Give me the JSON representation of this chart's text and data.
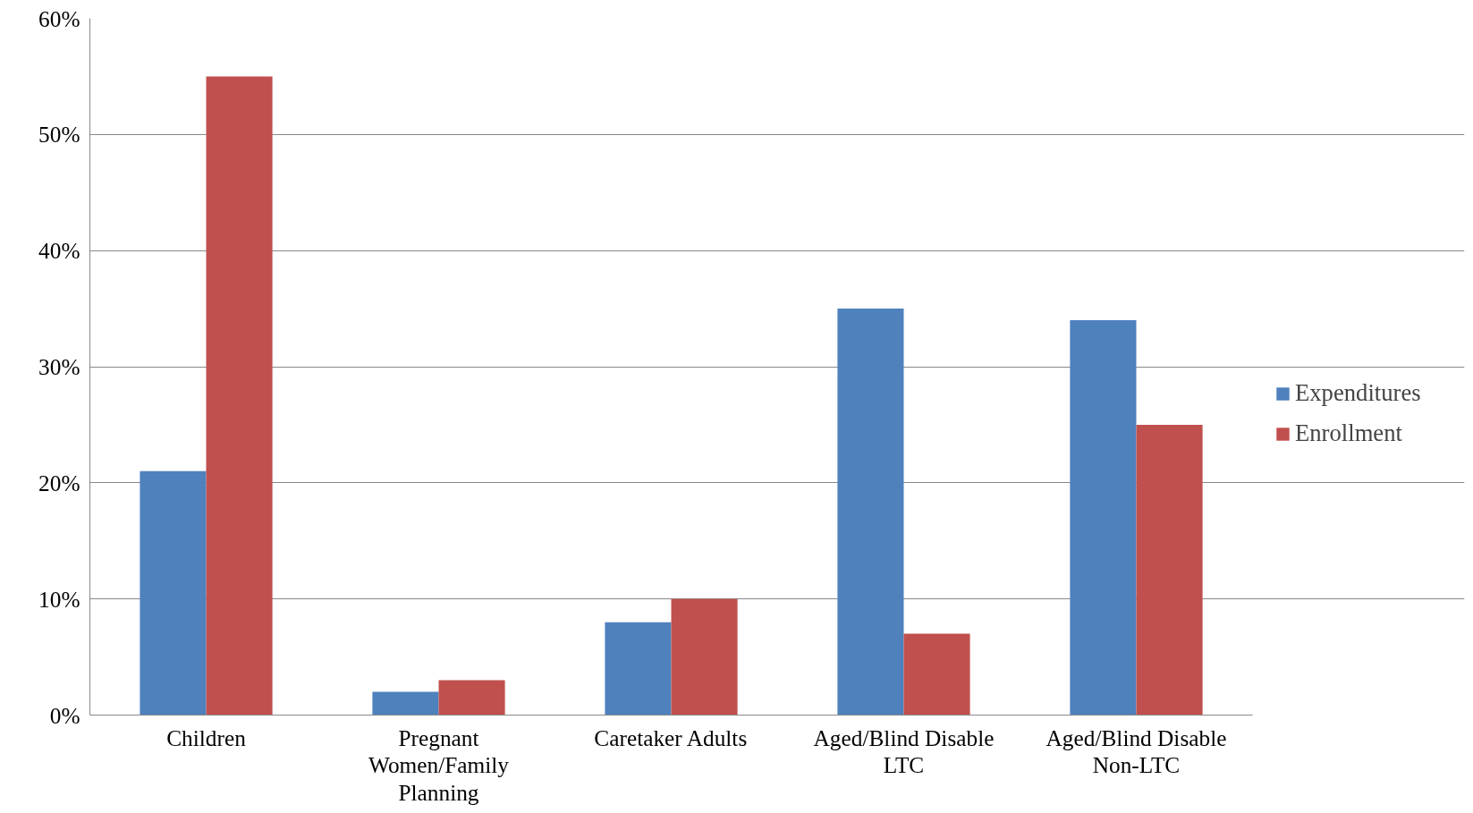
{
  "chart_data": {
    "type": "bar",
    "categories": [
      "Children",
      "Pregnant Women/Family Planning",
      "Caretaker Adults",
      "Aged/Blind Disable LTC",
      "Aged/Blind Disable Non-LTC"
    ],
    "series": [
      {
        "name": "Expenditures",
        "color": "#4f81bd",
        "values": [
          21,
          2,
          8,
          35,
          34
        ]
      },
      {
        "name": "Enrollment",
        "color": "#c0504d",
        "values": [
          55,
          3,
          10,
          7,
          25
        ]
      }
    ],
    "ylim": [
      0,
      60
    ],
    "yticks": [
      {
        "value": 0,
        "label": "0%"
      },
      {
        "value": 10,
        "label": "10%"
      },
      {
        "value": 20,
        "label": "20%"
      },
      {
        "value": 30,
        "label": "30%"
      },
      {
        "value": 40,
        "label": "40%"
      },
      {
        "value": 50,
        "label": "50%"
      },
      {
        "value": 60,
        "label": "60%"
      }
    ],
    "grid": "y",
    "legend": "right"
  }
}
